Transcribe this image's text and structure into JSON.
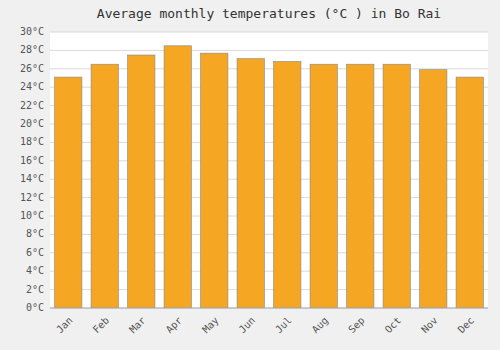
{
  "chart_data": {
    "type": "bar",
    "title": "Average monthly temperatures (°C ) in Bo Rai",
    "categories": [
      "Jan",
      "Feb",
      "Mar",
      "Apr",
      "May",
      "Jun",
      "Jul",
      "Aug",
      "Sep",
      "Oct",
      "Nov",
      "Dec"
    ],
    "values": [
      25.1,
      26.5,
      27.5,
      28.5,
      27.7,
      27.1,
      26.8,
      26.5,
      26.5,
      26.5,
      25.9,
      25.1
    ],
    "color": "#F5A623",
    "ylim": [
      0,
      30
    ],
    "yticks": [
      {
        "value": 0,
        "label": "0°C"
      },
      {
        "value": 2,
        "label": "2°C"
      },
      {
        "value": 4,
        "label": "4°C"
      },
      {
        "value": 6,
        "label": "6°C"
      },
      {
        "value": 8,
        "label": "8°C"
      },
      {
        "value": 10,
        "label": "10°C"
      },
      {
        "value": 12,
        "label": "12°C"
      },
      {
        "value": 14,
        "label": "14°C"
      },
      {
        "value": 16,
        "label": "16°C"
      },
      {
        "value": 18,
        "label": "18°C"
      },
      {
        "value": 20,
        "label": "20°C"
      },
      {
        "value": 22,
        "label": "22°C"
      },
      {
        "value": 24,
        "label": "24°C"
      },
      {
        "value": 26,
        "label": "26°C"
      },
      {
        "value": 28,
        "label": "28°C"
      },
      {
        "value": 30,
        "label": "30°C"
      }
    ],
    "grid": true
  }
}
